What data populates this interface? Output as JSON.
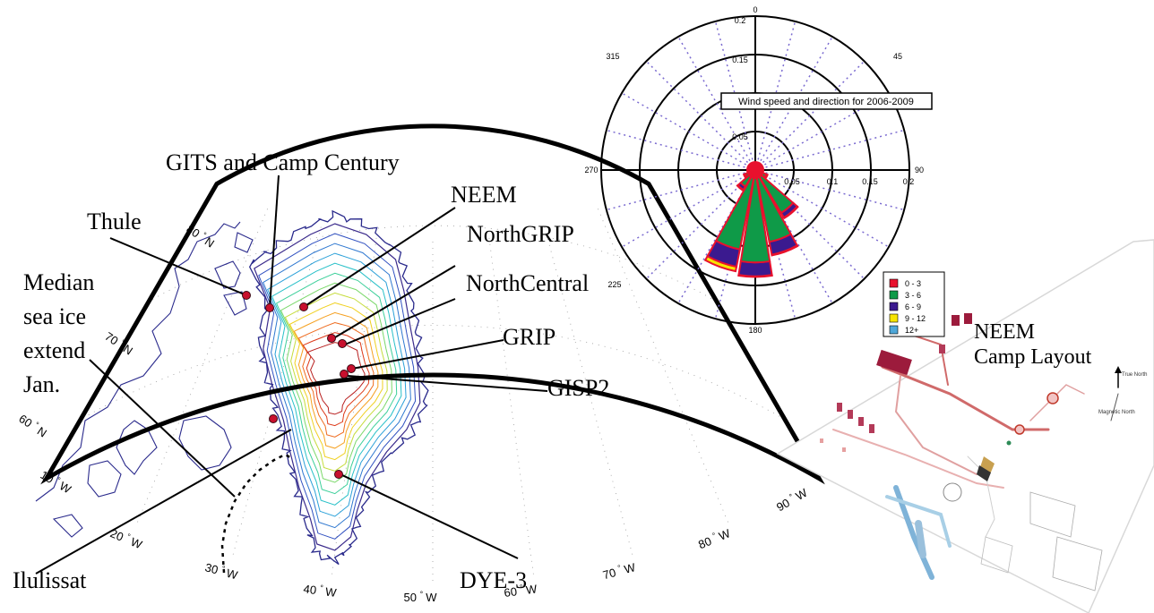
{
  "map": {
    "sites": [
      {
        "name": "GITS and Camp Century",
        "lon": -61.1,
        "lat": 77.2
      },
      {
        "name": "Thule",
        "lon": -68.8,
        "lat": 76.5
      },
      {
        "name": "NEEM",
        "lon": -51.1,
        "lat": 77.5
      },
      {
        "name": "NorthGRIP",
        "lon": -42.3,
        "lat": 75.1
      },
      {
        "name": "NorthCentral",
        "lon": -39.5,
        "lat": 74.6
      },
      {
        "name": "GRIP",
        "lon": -37.6,
        "lat": 72.6
      },
      {
        "name": "GISP2",
        "lon": -38.5,
        "lat": 72.6
      },
      {
        "name": "Ilulissat",
        "lon": -51.1,
        "lat": 69.2
      },
      {
        "name": "DYE-3",
        "lon": -43.8,
        "lat": 65.2
      }
    ],
    "labels": {
      "gits": "GITS and Camp Century",
      "thule": "Thule",
      "neem": "NEEM",
      "northgrip": "NorthGRIP",
      "northcentral": "NorthCentral",
      "grip": "GRIP",
      "gisp2": "GISP2",
      "ilulissat": "Ilulissat",
      "dye3": "DYE-3",
      "seaice1": "Median",
      "seaice2": "sea ice",
      "seaice3": "extend",
      "seaice4": "Jan."
    },
    "lat_labels": [
      "80",
      "70",
      "60"
    ],
    "lat_suffix": "N",
    "lon_labels": [
      "90",
      "80",
      "70",
      "60",
      "50",
      "40",
      "30",
      "20",
      "10"
    ],
    "lon_suffix": "W",
    "degree": "°",
    "colors": {
      "frame": "#000000",
      "site": "#c8102e",
      "coast": "#2a2a8c"
    }
  },
  "wind_rose": {
    "title": "Wind speed and direction for 2006-2009",
    "dir_labels": [
      "0",
      "45",
      "90",
      "135",
      "180",
      "225",
      "270",
      "315"
    ],
    "radial_labels_vertical": [
      "0.2",
      "0.15",
      "0.1",
      "0.05"
    ],
    "radial_labels_horizontal": [
      "0.05",
      "0.1",
      "0.15",
      "0.2"
    ],
    "radial_max": 0.2,
    "legend": [
      {
        "label": "0 - 3",
        "color": "#e8112d"
      },
      {
        "label": "3 - 6",
        "color": "#0f9a48"
      },
      {
        "label": "6 - 9",
        "color": "#3b1a8f"
      },
      {
        "label": "9 - 12",
        "color": "#f7e400"
      },
      {
        "label": "12+",
        "color": "#4ea7d8"
      }
    ],
    "petals": [
      {
        "dir": 180,
        "s03": 0.004,
        "s36": 0.12,
        "s69": 0.138,
        "s912": 0.139
      },
      {
        "dir": 200,
        "s03": 0.004,
        "s36": 0.105,
        "s69": 0.128,
        "s912": 0.134
      },
      {
        "dir": 160,
        "s03": 0.004,
        "s36": 0.095,
        "s69": 0.112,
        "s912": 0.113
      },
      {
        "dir": 140,
        "s03": 0.004,
        "s36": 0.065,
        "s69": 0.072,
        "s912": 0.073
      },
      {
        "dir": 220,
        "s03": 0.004,
        "s36": 0.025,
        "s69": 0.03,
        "s912": 0.031
      },
      {
        "dir": 240,
        "s03": 0.004,
        "s36": 0.014,
        "s69": 0.016,
        "s912": 0.016
      },
      {
        "dir": 120,
        "s03": 0.004,
        "s36": 0.015,
        "s69": 0.017,
        "s912": 0.017
      },
      {
        "dir": 260,
        "s03": 0.004,
        "s36": 0.008,
        "s69": 0.009,
        "s912": 0.009
      }
    ]
  },
  "camp_layout": {
    "title1": "NEEM",
    "title2": "Camp Layout",
    "north_true": "True North",
    "north_magnetic": "Magnetic North"
  }
}
